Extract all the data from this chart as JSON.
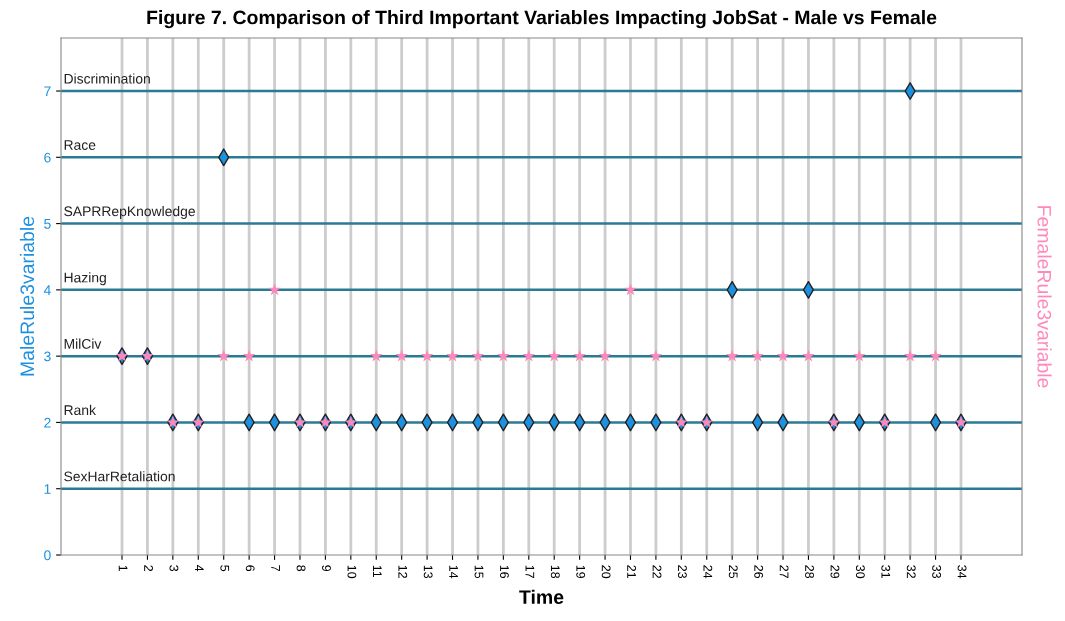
{
  "chart_data": {
    "type": "scatter",
    "title": "Figure 7. Comparison of Third Important Variables Impacting JobSat - Male vs Female",
    "xlabel": "Time",
    "ylabel": "MaleRule3variable",
    "y2label": "FemaleRule3variable",
    "x": [
      1,
      2,
      3,
      4,
      5,
      6,
      7,
      8,
      9,
      10,
      11,
      12,
      13,
      14,
      15,
      16,
      17,
      18,
      19,
      20,
      21,
      22,
      23,
      24,
      25,
      26,
      27,
      28,
      29,
      30,
      31,
      32,
      33,
      34
    ],
    "xlim": [
      -1.4,
      36.4
    ],
    "xticks": [
      1,
      2,
      3,
      4,
      5,
      6,
      7,
      8,
      9,
      10,
      11,
      12,
      13,
      14,
      15,
      16,
      17,
      18,
      19,
      20,
      21,
      22,
      23,
      24,
      25,
      26,
      27,
      28,
      29,
      30,
      31,
      32,
      33,
      34
    ],
    "ylim": [
      0,
      7.8
    ],
    "yticks": [
      0,
      1,
      2,
      3,
      4,
      5,
      6,
      7
    ],
    "grid": "x",
    "series": [
      {
        "color": "#1e90e0",
        "marker": "diamond",
        "values": [
          3,
          3,
          2,
          2,
          6,
          2,
          2,
          2,
          2,
          2,
          2,
          2,
          2,
          2,
          2,
          2,
          2,
          2,
          2,
          2,
          2,
          2,
          2,
          2,
          4,
          2,
          2,
          4,
          2,
          2,
          2,
          7,
          2,
          2
        ]
      },
      {
        "color": "#ff88bb",
        "marker": "star",
        "values": [
          3,
          3,
          2,
          2,
          3,
          3,
          4,
          2,
          2,
          2,
          3,
          3,
          3,
          3,
          3,
          3,
          3,
          3,
          3,
          3,
          4,
          3,
          2,
          2,
          3,
          3,
          3,
          3,
          2,
          3,
          2,
          3,
          3,
          2
        ]
      }
    ],
    "ref_lines": [
      {
        "axis": "y",
        "value": 1,
        "label": "SexHarRetaliation",
        "color": "#2b7a94"
      },
      {
        "axis": "y",
        "value": 2,
        "label": "Rank",
        "color": "#2b7a94"
      },
      {
        "axis": "y",
        "value": 3,
        "label": "MilCiv",
        "color": "#2b7a94"
      },
      {
        "axis": "y",
        "value": 4,
        "label": "Hazing",
        "color": "#2b7a94"
      },
      {
        "axis": "y",
        "value": 5,
        "label": "SAPRRepKnowledge",
        "color": "#2b7a94"
      },
      {
        "axis": "y",
        "value": 6,
        "label": "Race",
        "color": "#2b7a94"
      },
      {
        "axis": "y",
        "value": 7,
        "label": "Discrimination",
        "color": "#2b7a94"
      }
    ]
  }
}
